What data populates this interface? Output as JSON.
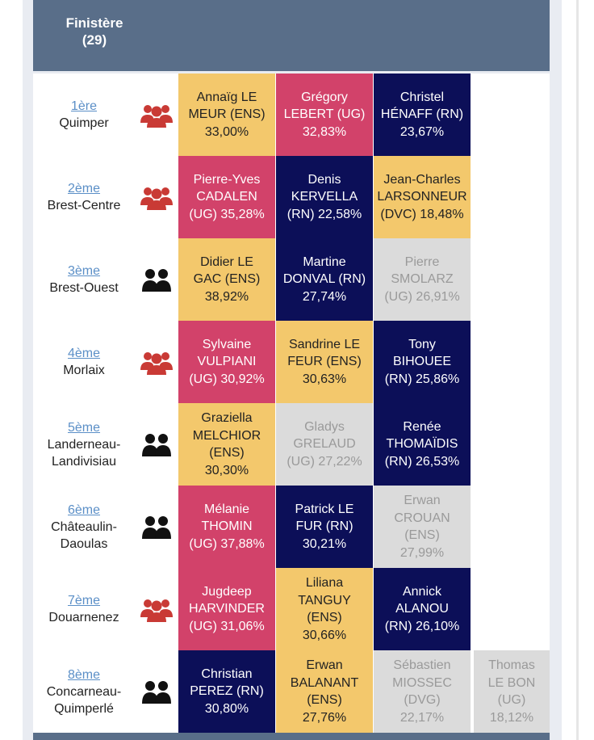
{
  "header": {
    "title": "Finistère\n(29)"
  },
  "colors": {
    "ENS": "#f3c86c",
    "UG": "#d2426a",
    "RN": "#0c0f58",
    "DVC": "#f3c86c",
    "eliminated": "#dbdbdb",
    "header_bg": "#596e89",
    "link": "#5b8fc7",
    "icon_triangular": "#c93a35",
    "icon_duel": "#111111"
  },
  "rows": [
    {
      "rank": "1ère",
      "district": "Quimper",
      "icon": "triangular-group-icon",
      "candidates": [
        {
          "text": "Annaïg LE\nMEUR (ENS)\n33,00%",
          "style": "ENS"
        },
        {
          "text": "Grégory\nLEBERT (UG)\n32,83%",
          "style": "UG"
        },
        {
          "text": "Christel\nHÉNAFF (RN)\n23,67%",
          "style": "RN"
        }
      ]
    },
    {
      "rank": "2ème",
      "district": "Brest-Centre",
      "icon": "triangular-group-icon",
      "candidates": [
        {
          "text": "Pierre-Yves\nCADALEN\n(UG) 35,28%",
          "style": "UG"
        },
        {
          "text": "Denis\nKERVELLA\n(RN) 22,58%",
          "style": "RN"
        },
        {
          "text": "Jean-Charles\nLARSONNEUR\n(DVC) 18,48%",
          "style": "DVC"
        }
      ]
    },
    {
      "rank": "3ème",
      "district": "Brest-Ouest",
      "icon": "duel-group-icon",
      "candidates": [
        {
          "text": "Didier LE\nGAC (ENS)\n38,92%",
          "style": "ENS"
        },
        {
          "text": "Martine\nDONVAL (RN)\n27,74%",
          "style": "RN"
        },
        {
          "text": "Pierre\nSMOLARZ\n(UG) 26,91%",
          "style": "eliminated"
        }
      ]
    },
    {
      "rank": "4ème",
      "district": "Morlaix",
      "icon": "triangular-group-icon",
      "candidates": [
        {
          "text": "Sylvaine\nVULPIANI\n(UG) 30,92%",
          "style": "UG"
        },
        {
          "text": "Sandrine LE\nFEUR (ENS)\n30,63%",
          "style": "ENS"
        },
        {
          "text": "Tony\nBIHOUEE\n(RN) 25,86%",
          "style": "RN"
        }
      ]
    },
    {
      "rank": "5ème",
      "district": "Landerneau-\nLandivisiau",
      "icon": "duel-group-icon",
      "candidates": [
        {
          "text": "Graziella\nMELCHIOR\n(ENS)\n30,30%",
          "style": "ENS"
        },
        {
          "text": "Gladys\nGRELAUD\n(UG) 27,22%",
          "style": "eliminated"
        },
        {
          "text": "Renée\nTHOMAÏDIS\n(RN) 26,53%",
          "style": "RN"
        }
      ]
    },
    {
      "rank": "6ème",
      "district": "Châteaulin-\nDaoulas",
      "icon": "duel-group-icon",
      "candidates": [
        {
          "text": "Mélanie\nTHOMIN\n(UG) 37,88%",
          "style": "UG"
        },
        {
          "text": "Patrick LE\nFUR (RN)\n30,21%",
          "style": "RN"
        },
        {
          "text": "Erwan\nCROUAN\n(ENS)\n27,99%",
          "style": "eliminated"
        }
      ]
    },
    {
      "rank": "7ème",
      "district": "Douarnenez",
      "icon": "triangular-group-icon",
      "candidates": [
        {
          "text": "Jugdeep\nHARVINDER\n(UG) 31,06%",
          "style": "UG"
        },
        {
          "text": "Liliana\nTANGUY\n(ENS)\n30,66%",
          "style": "ENS"
        },
        {
          "text": "Annick\nALANOU\n(RN) 26,10%",
          "style": "RN"
        }
      ]
    },
    {
      "rank": "8ème",
      "district": "Concarneau-\nQuimperlé",
      "icon": "duel-group-icon",
      "candidates": [
        {
          "text": "Christian\nPEREZ (RN)\n30,80%",
          "style": "RN"
        },
        {
          "text": "Erwan\nBALANANT\n(ENS)\n27,76%",
          "style": "ENS"
        },
        {
          "text": "Sébastien\nMIOSSEC\n(DVG)\n22,17%",
          "style": "eliminated"
        },
        {
          "text": "Thomas\nLE BON\n(UG)\n18,12%",
          "style": "eliminated"
        }
      ]
    }
  ]
}
